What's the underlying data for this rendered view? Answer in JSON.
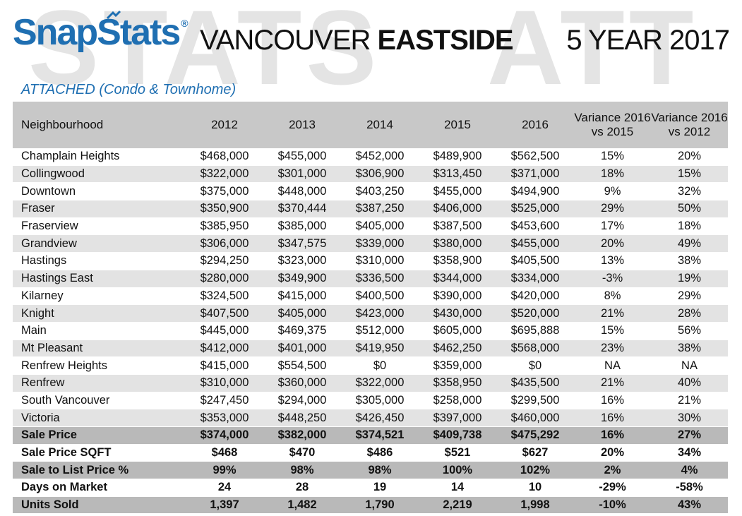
{
  "header": {
    "logo": "SnapStats",
    "logo_mark": "®",
    "title_prefix": "VANCOUVER",
    "title_bold": "EASTSIDE",
    "period": "5 YEAR 2017",
    "watermark_left": "STATS",
    "watermark_right": "ATT"
  },
  "subtitle": "ATTACHED (Condo & Townhome)",
  "table": {
    "columns": [
      "Neighbourhood",
      "2012",
      "2013",
      "2014",
      "2015",
      "2016",
      "Variance 2016 vs 2015",
      "Variance 2016 vs 2012"
    ],
    "rows": [
      [
        "Champlain Heights",
        "$468,000",
        "$455,000",
        "$452,000",
        "$489,900",
        "$562,500",
        "15%",
        "20%"
      ],
      [
        "Collingwood",
        "$322,000",
        "$301,000",
        "$306,900",
        "$313,450",
        "$371,000",
        "18%",
        "15%"
      ],
      [
        "Downtown",
        "$375,000",
        "$448,000",
        "$403,250",
        "$455,000",
        "$494,900",
        "9%",
        "32%"
      ],
      [
        "Fraser",
        "$350,900",
        "$370,444",
        "$387,250",
        "$406,000",
        "$525,000",
        "29%",
        "50%"
      ],
      [
        "Fraserview",
        "$385,950",
        "$385,000",
        "$405,000",
        "$387,500",
        "$453,600",
        "17%",
        "18%"
      ],
      [
        "Grandview",
        "$306,000",
        "$347,575",
        "$339,000",
        "$380,000",
        "$455,000",
        "20%",
        "49%"
      ],
      [
        "Hastings",
        "$294,250",
        "$323,000",
        "$310,000",
        "$358,900",
        "$405,500",
        "13%",
        "38%"
      ],
      [
        "Hastings East",
        "$280,000",
        "$349,900",
        "$336,500",
        "$344,000",
        "$334,000",
        "-3%",
        "19%"
      ],
      [
        "Kilarney",
        "$324,500",
        "$415,000",
        "$400,500",
        "$390,000",
        "$420,000",
        "8%",
        "29%"
      ],
      [
        "Knight",
        "$407,500",
        "$405,000",
        "$423,000",
        "$430,000",
        "$520,000",
        "21%",
        "28%"
      ],
      [
        "Main",
        "$445,000",
        "$469,375",
        "$512,000",
        "$605,000",
        "$695,888",
        "15%",
        "56%"
      ],
      [
        "Mt Pleasant",
        "$412,000",
        "$401,000",
        "$419,950",
        "$462,250",
        "$568,000",
        "23%",
        "38%"
      ],
      [
        "Renfrew Heights",
        "$415,000",
        "$554,500",
        "$0",
        "$359,000",
        "$0",
        "NA",
        "NA"
      ],
      [
        "Renfrew",
        "$310,000",
        "$360,000",
        "$322,000",
        "$358,950",
        "$435,500",
        "21%",
        "40%"
      ],
      [
        "South Vancouver",
        "$247,450",
        "$294,000",
        "$305,000",
        "$258,000",
        "$299,500",
        "16%",
        "21%"
      ],
      [
        "Victoria",
        "$353,000",
        "$448,250",
        "$426,450",
        "$397,000",
        "$460,000",
        "16%",
        "30%"
      ]
    ],
    "summary": [
      [
        "Sale Price",
        "$374,000",
        "$382,000",
        "$374,521",
        "$409,738",
        "$475,292",
        "16%",
        "27%"
      ],
      [
        "Sale Price SQFT",
        "$468",
        "$470",
        "$486",
        "$521",
        "$627",
        "20%",
        "34%"
      ],
      [
        "Sale to List Price %",
        "99%",
        "98%",
        "98%",
        "100%",
        "102%",
        "2%",
        "4%"
      ],
      [
        "Days on Market",
        "24",
        "28",
        "19",
        "14",
        "10",
        "-29%",
        "-58%"
      ],
      [
        "Units Sold",
        "1,397",
        "1,482",
        "1,790",
        "2,219",
        "1,998",
        "-10%",
        "43%"
      ]
    ]
  }
}
